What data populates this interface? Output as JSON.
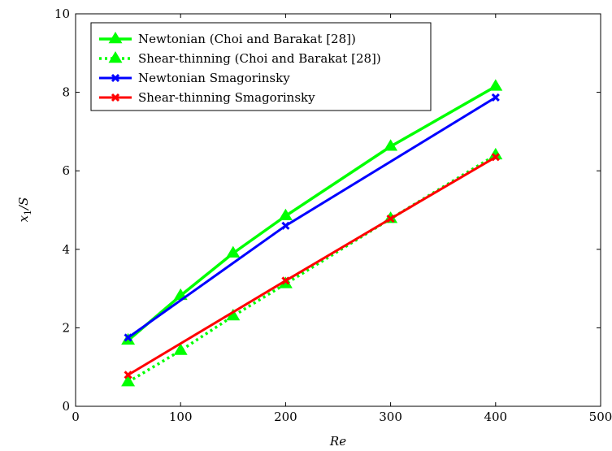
{
  "chart_data": {
    "type": "line",
    "title": "",
    "xlabel": "Re",
    "ylabel_main": "x",
    "ylabel_sub": "1",
    "ylabel_suffix": "/S",
    "xlim": [
      0,
      500
    ],
    "ylim": [
      0,
      10
    ],
    "xticks": [
      0,
      100,
      200,
      300,
      400,
      500
    ],
    "yticks": [
      0,
      2,
      4,
      6,
      8,
      10
    ],
    "xtick_labels": [
      "0",
      "100",
      "200",
      "300",
      "400",
      "500"
    ],
    "ytick_labels": [
      "0",
      "2",
      "4",
      "6",
      "8",
      "10"
    ],
    "grid": false,
    "legend_position": "top-left",
    "series": [
      {
        "name": "Newtonian (Choi and Barakat [28])",
        "color": "#00ff00",
        "line_style": "solid",
        "marker": "triangle",
        "x": [
          50,
          100,
          150,
          200,
          300,
          400
        ],
        "y": [
          1.68,
          2.82,
          3.9,
          4.85,
          6.62,
          8.15
        ]
      },
      {
        "name": "Shear-thinning (Choi and Barakat [28])",
        "color": "#00ff00",
        "line_style": "dotted",
        "marker": "triangle",
        "x": [
          50,
          100,
          150,
          200,
          300,
          400
        ],
        "y": [
          0.62,
          1.42,
          2.3,
          3.12,
          4.78,
          6.4
        ]
      },
      {
        "name": "Newtonian Smagorinsky",
        "color": "#0000ff",
        "line_style": "solid",
        "marker": "x",
        "x": [
          50,
          200,
          400
        ],
        "y": [
          1.75,
          4.6,
          7.87
        ]
      },
      {
        "name": "Shear-thinning Smagorinsky",
        "color": "#ff0000",
        "line_style": "solid",
        "marker": "x",
        "x": [
          50,
          200,
          300,
          400
        ],
        "y": [
          0.8,
          3.2,
          4.78,
          6.35
        ]
      }
    ]
  }
}
